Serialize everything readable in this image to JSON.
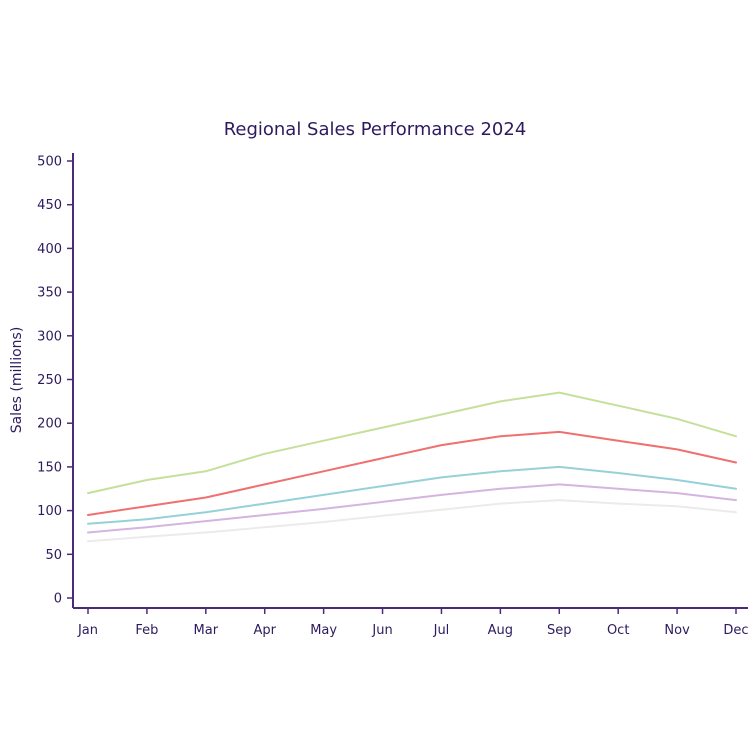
{
  "chart_data": {
    "type": "line",
    "title": "Regional Sales Performance 2024",
    "xlabel": "",
    "ylabel": "Sales (millions)",
    "ylim": [
      0,
      500
    ],
    "yticks": [
      "0",
      "50",
      "100",
      "150",
      "200",
      "250",
      "300",
      "350",
      "400",
      "450",
      "500"
    ],
    "categories": [
      "Jan",
      "Feb",
      "Mar",
      "Apr",
      "May",
      "Jun",
      "Jul",
      "Aug",
      "Sep",
      "Oct",
      "Nov",
      "Dec"
    ],
    "grid": false,
    "legend": "none",
    "series": [
      {
        "color": "#c5e09b",
        "values": [
          120,
          135,
          145,
          165,
          180,
          195,
          210,
          225,
          235,
          220,
          205,
          185
        ]
      },
      {
        "color": "#f07070",
        "values": [
          95,
          105,
          115,
          130,
          145,
          160,
          175,
          185,
          190,
          180,
          170,
          155
        ]
      },
      {
        "color": "#96d0d8",
        "values": [
          85,
          90,
          98,
          108,
          118,
          128,
          138,
          145,
          150,
          143,
          135,
          125
        ]
      },
      {
        "color": "#d4b4e0",
        "values": [
          75,
          81,
          88,
          95,
          102,
          110,
          118,
          125,
          130,
          125,
          120,
          112
        ]
      },
      {
        "color": "#ebebeb",
        "values": [
          65,
          70,
          75,
          81,
          87,
          94,
          101,
          108,
          112,
          108,
          105,
          98
        ]
      }
    ]
  }
}
